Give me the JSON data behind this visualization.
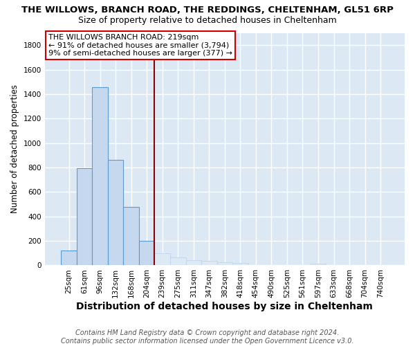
{
  "title": "THE WILLOWS, BRANCH ROAD, THE REDDINGS, CHELTENHAM, GL51 6RP",
  "subtitle": "Size of property relative to detached houses in Cheltenham",
  "xlabel": "Distribution of detached houses by size in Cheltenham",
  "ylabel": "Number of detached properties",
  "footer_line1": "Contains HM Land Registry data © Crown copyright and database right 2024.",
  "footer_line2": "Contains public sector information licensed under the Open Government Licence v3.0.",
  "categories": [
    "25sqm",
    "61sqm",
    "96sqm",
    "132sqm",
    "168sqm",
    "204sqm",
    "239sqm",
    "275sqm",
    "311sqm",
    "347sqm",
    "382sqm",
    "418sqm",
    "454sqm",
    "490sqm",
    "525sqm",
    "561sqm",
    "597sqm",
    "633sqm",
    "668sqm",
    "704sqm",
    "740sqm"
  ],
  "values": [
    120,
    795,
    1455,
    865,
    480,
    200,
    100,
    65,
    45,
    35,
    25,
    20,
    0,
    0,
    0,
    0,
    12,
    0,
    0,
    0,
    0
  ],
  "bar_color_below": "#c5d8ee",
  "bar_color_above": "#ddeaf6",
  "bar_edge_color_below": "#5b9bd5",
  "bar_edge_color_above": "#c5d8ee",
  "vline_x": 6.0,
  "vline_color": "#8b0000",
  "annotation_line1": "THE WILLOWS BRANCH ROAD: 219sqm",
  "annotation_line2": "← 91% of detached houses are smaller (3,794)",
  "annotation_line3": "9% of semi-detached houses are larger (377) →",
  "annotation_box_facecolor": "#ffffff",
  "annotation_border_color": "#cc0000",
  "ylim": [
    0,
    1900
  ],
  "yticks": [
    0,
    200,
    400,
    600,
    800,
    1000,
    1200,
    1400,
    1600,
    1800
  ],
  "bg_color": "#ffffff",
  "plot_bg_color": "#dce9f5",
  "grid_color": "#ffffff",
  "title_fontsize": 9.5,
  "subtitle_fontsize": 9,
  "xlabel_fontsize": 10,
  "ylabel_fontsize": 8.5,
  "tick_fontsize": 7.5,
  "annotation_fontsize": 8,
  "footer_fontsize": 7
}
